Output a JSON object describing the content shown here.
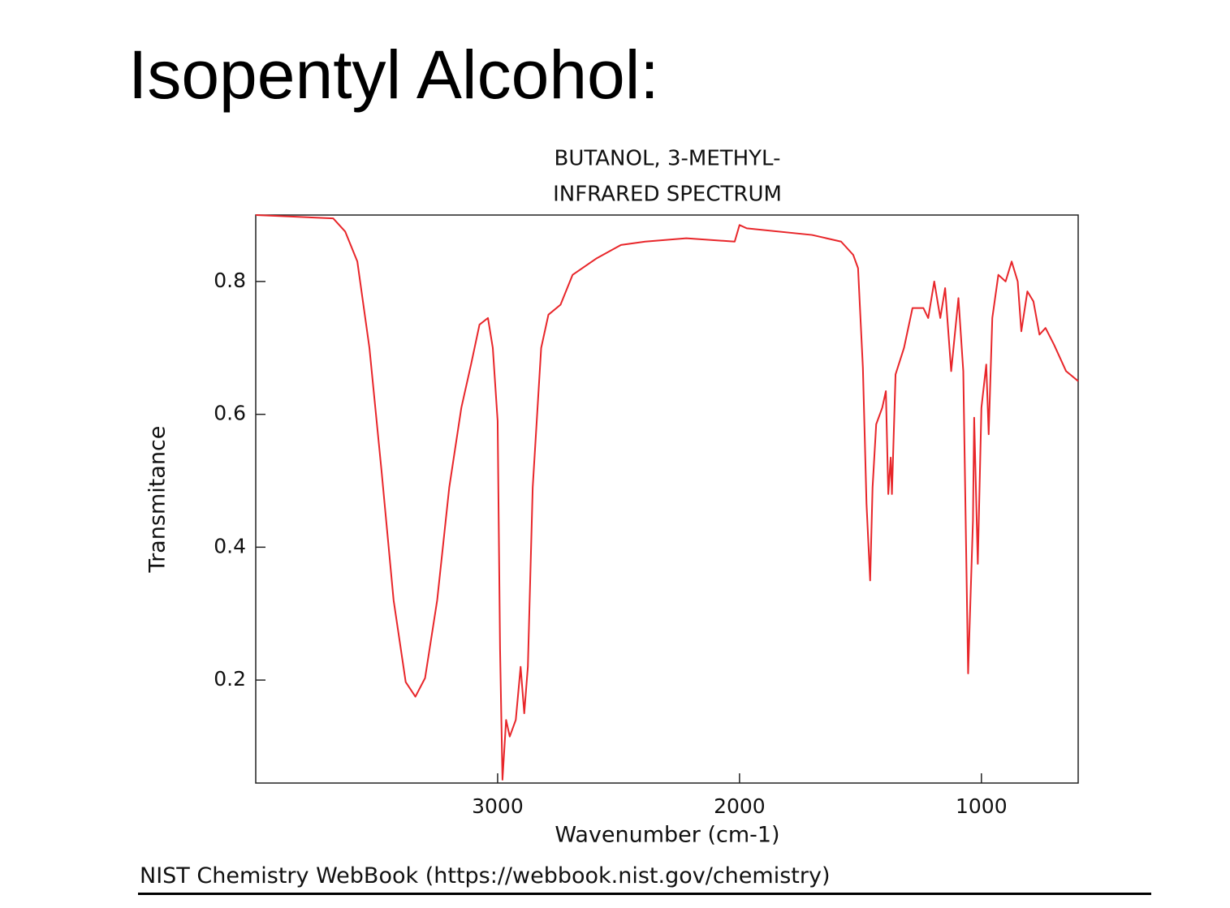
{
  "slide_title": "Isopentyl Alcohol:",
  "source": "NIST Chemistry WebBook (https://webbook.nist.gov/chemistry)",
  "chart_data": {
    "type": "line",
    "title": "BUTANOL, 3-METHYL-",
    "subtitle": "INFRARED SPECTRUM",
    "x_label": "Wavenumber (cm-1)",
    "y_label": "Transmitance",
    "xlim": [
      4000,
      600
    ],
    "ylim": [
      0.045,
      0.9
    ],
    "xticks": [
      3000,
      2000,
      1000
    ],
    "yticks": [
      0.2,
      0.4,
      0.6,
      0.8
    ],
    "grid": false,
    "series": [
      {
        "color": "#e8262a",
        "x": [
          4000,
          3680,
          3630,
          3580,
          3530,
          3480,
          3430,
          3380,
          3340,
          3300,
          3250,
          3200,
          3150,
          3110,
          3075,
          3040,
          3020,
          3000,
          2990,
          2980,
          2965,
          2950,
          2925,
          2905,
          2890,
          2875,
          2855,
          2820,
          2790,
          2740,
          2690,
          2590,
          2490,
          2390,
          2220,
          2020,
          2000,
          1970,
          1700,
          1580,
          1530,
          1510,
          1490,
          1475,
          1460,
          1450,
          1435,
          1410,
          1395,
          1385,
          1375,
          1370,
          1355,
          1320,
          1285,
          1240,
          1220,
          1195,
          1170,
          1150,
          1125,
          1095,
          1075,
          1055,
          1035,
          1030,
          1015,
          1000,
          980,
          970,
          955,
          930,
          900,
          875,
          850,
          835,
          810,
          785,
          760,
          735,
          700,
          650,
          600
        ],
        "values": [
          0.9,
          0.895,
          0.875,
          0.83,
          0.7,
          0.515,
          0.32,
          0.197,
          0.175,
          0.203,
          0.32,
          0.49,
          0.61,
          0.675,
          0.735,
          0.745,
          0.7,
          0.59,
          0.247,
          0.05,
          0.14,
          0.115,
          0.14,
          0.22,
          0.15,
          0.22,
          0.49,
          0.7,
          0.75,
          0.765,
          0.81,
          0.835,
          0.855,
          0.86,
          0.865,
          0.86,
          0.885,
          0.88,
          0.87,
          0.86,
          0.84,
          0.82,
          0.67,
          0.465,
          0.35,
          0.49,
          0.585,
          0.61,
          0.635,
          0.48,
          0.535,
          0.48,
          0.66,
          0.7,
          0.76,
          0.76,
          0.745,
          0.8,
          0.745,
          0.79,
          0.665,
          0.775,
          0.665,
          0.21,
          0.44,
          0.595,
          0.375,
          0.61,
          0.675,
          0.57,
          0.745,
          0.81,
          0.8,
          0.83,
          0.8,
          0.725,
          0.785,
          0.77,
          0.72,
          0.73,
          0.705,
          0.665,
          0.65
        ]
      }
    ]
  }
}
